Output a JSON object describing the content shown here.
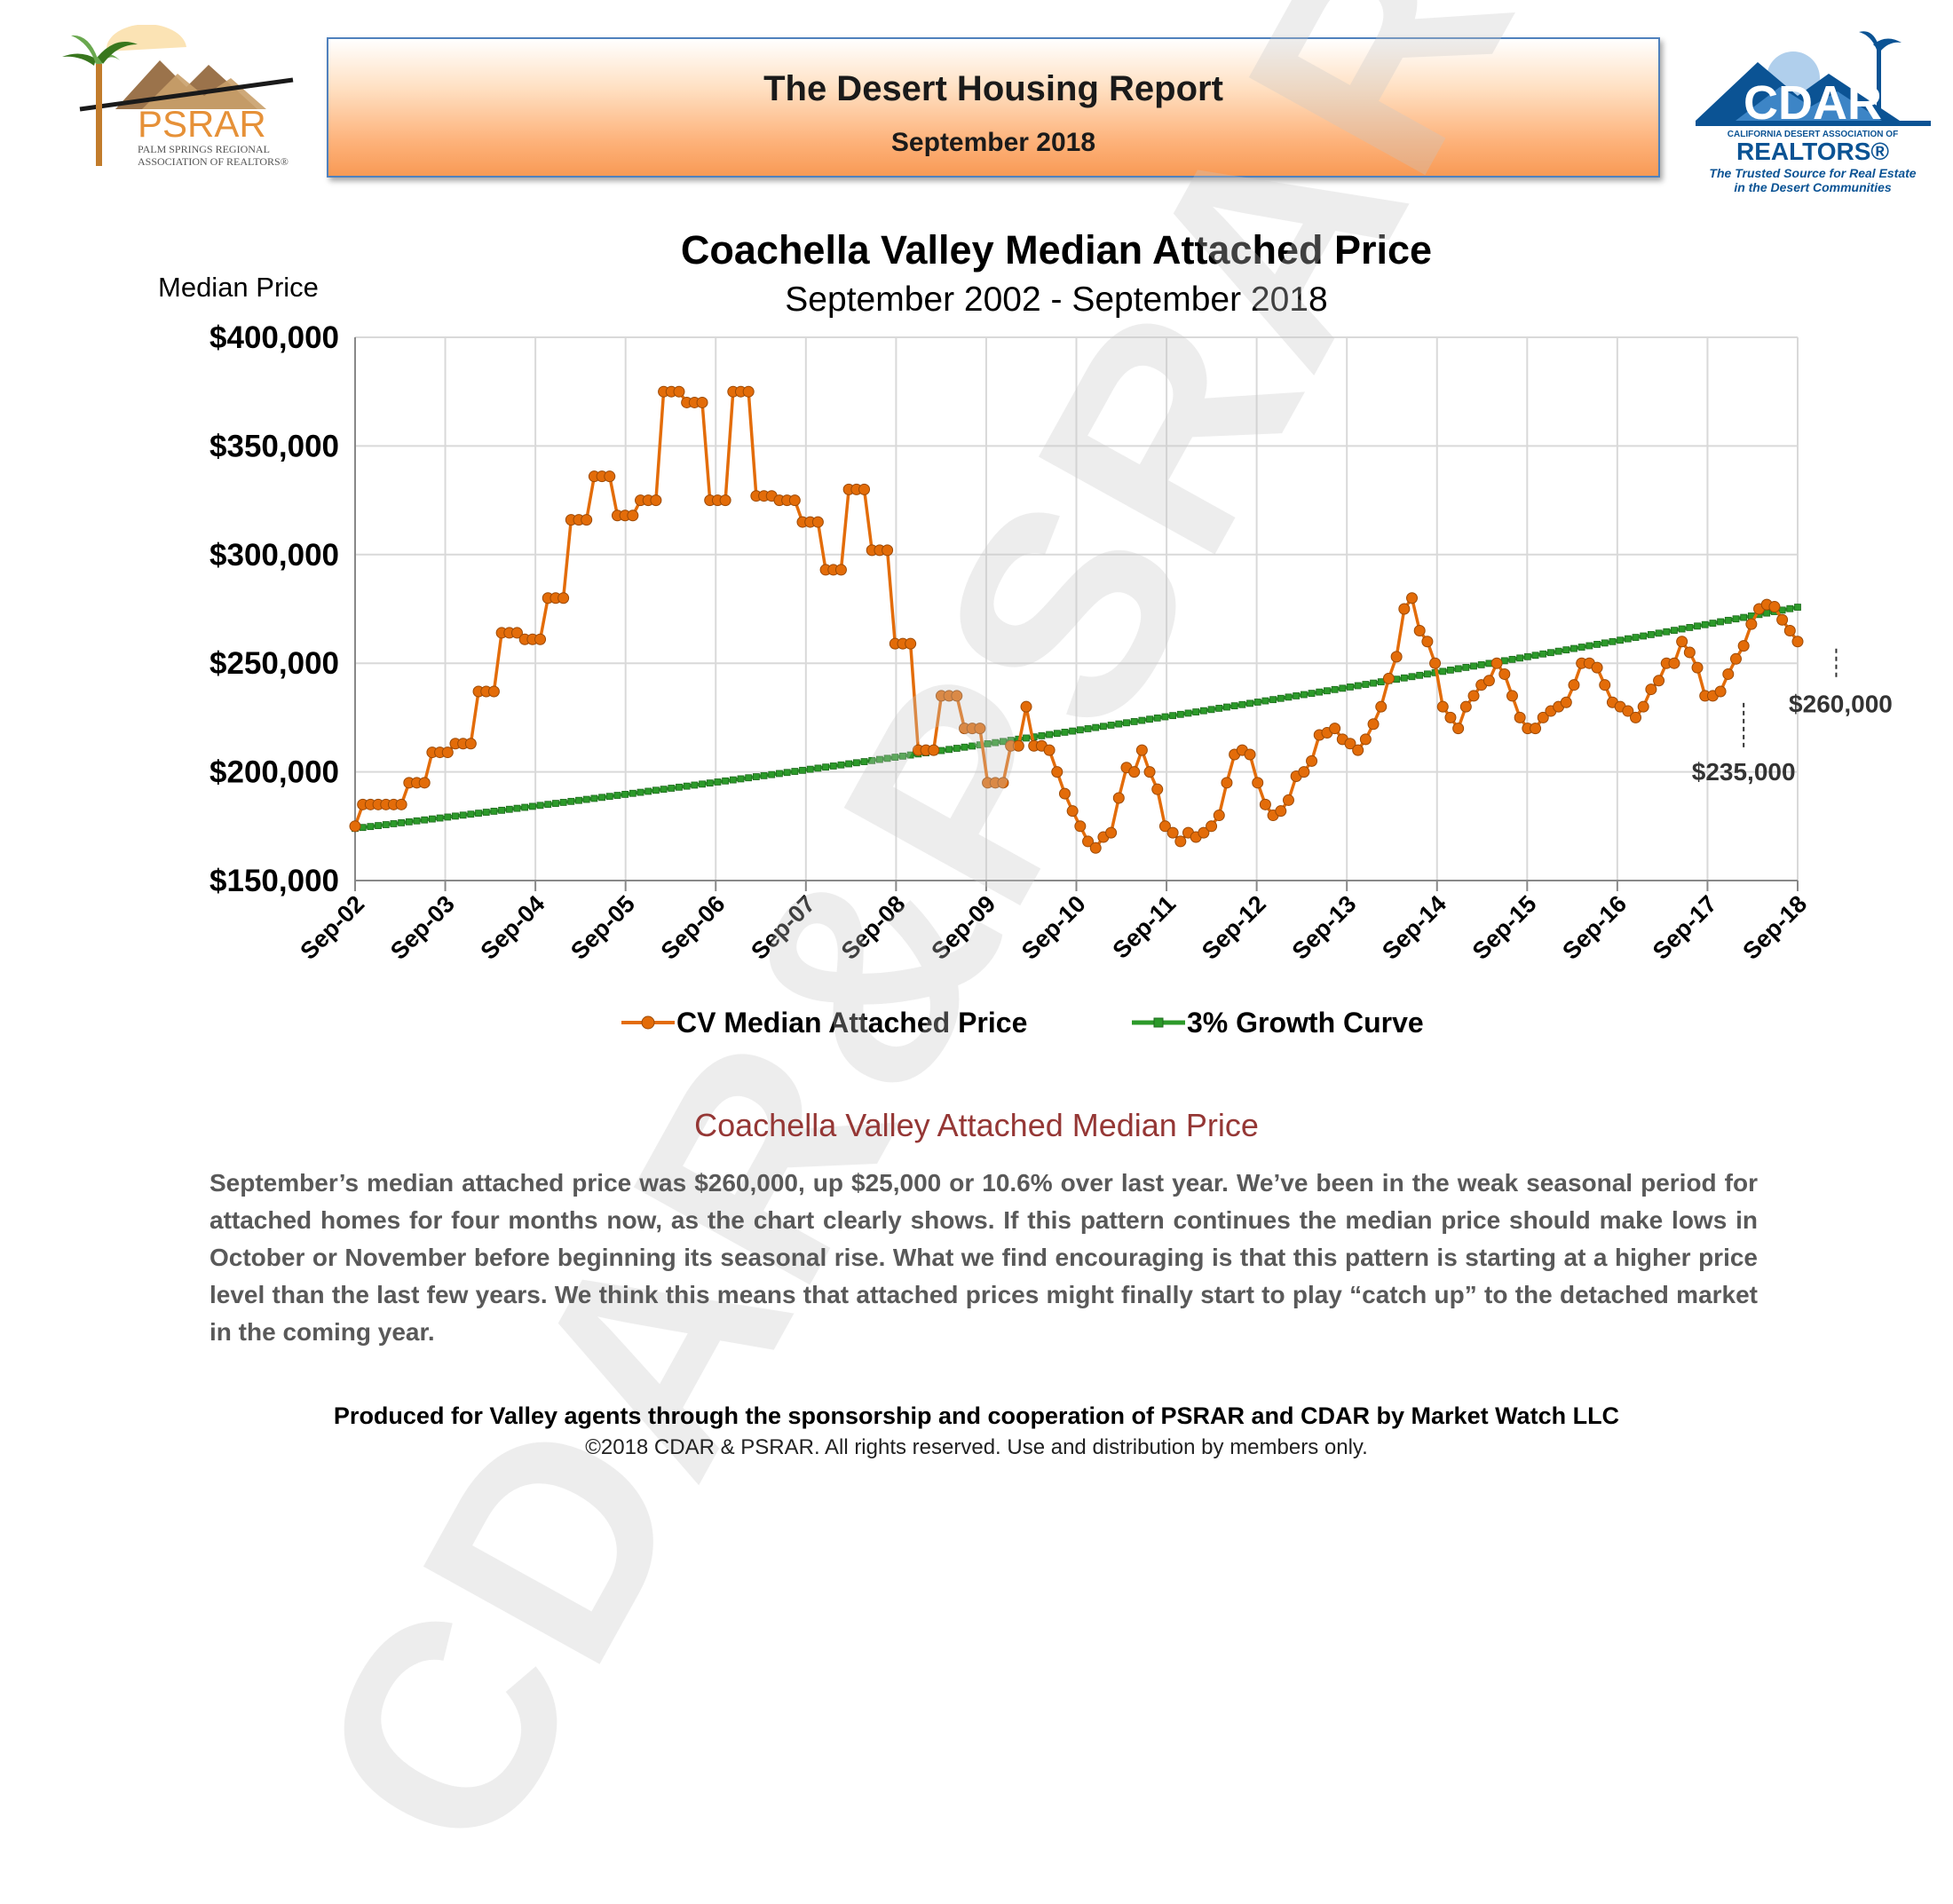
{
  "header": {
    "title": "The Desert Housing Report",
    "subtitle": "September 2018"
  },
  "logos": {
    "left": {
      "name": "PSRAR",
      "line1": "PALM SPRINGS REGIONAL",
      "line2": "ASSOCIATION OF REALTORS®"
    },
    "right": {
      "name": "CDAR",
      "line1": "CALIFORNIA DESERT ASSOCIATION OF",
      "line2": "REALTORS®",
      "tag1": "The Trusted Source for Real Estate",
      "tag2": "in the Desert Communities"
    }
  },
  "watermark": "CDAR&PSRAR",
  "chart_data": {
    "type": "line",
    "title": "Coachella Valley Median Attached Price",
    "subtitle": "September 2002 - September 2018",
    "ylabel": "Median Price",
    "xlabel": "",
    "ylim": [
      150000,
      400000
    ],
    "yticks": [
      150000,
      200000,
      250000,
      300000,
      350000,
      400000
    ],
    "ytick_labels": [
      "$150,000",
      "$200,000",
      "$250,000",
      "$300,000",
      "$350,000",
      "$400,000"
    ],
    "x_labels": [
      "Sep-02",
      "Sep-03",
      "Sep-04",
      "Sep-05",
      "Sep-06",
      "Sep-07",
      "Sep-08",
      "Sep-09",
      "Sep-10",
      "Sep-11",
      "Sep-12",
      "Sep-13",
      "Sep-14",
      "Sep-15",
      "Sep-16",
      "Sep-17",
      "Sep-18"
    ],
    "grid": true,
    "legend_position": "bottom",
    "series": [
      {
        "name": "CV Median Attached Price",
        "color": "#e36c09",
        "marker": "circle",
        "values": [
          175000,
          185000,
          185000,
          185000,
          185000,
          185000,
          185000,
          195000,
          195000,
          195000,
          209000,
          209000,
          209000,
          213000,
          213000,
          213000,
          237000,
          237000,
          237000,
          264000,
          264000,
          264000,
          261000,
          261000,
          261000,
          280000,
          280000,
          280000,
          316000,
          316000,
          316000,
          336000,
          336000,
          336000,
          318000,
          318000,
          318000,
          325000,
          325000,
          325000,
          375000,
          375000,
          375000,
          370000,
          370000,
          370000,
          325000,
          325000,
          325000,
          375000,
          375000,
          375000,
          327000,
          327000,
          327000,
          325000,
          325000,
          325000,
          315000,
          315000,
          315000,
          293000,
          293000,
          293000,
          330000,
          330000,
          330000,
          302000,
          302000,
          302000,
          259000,
          259000,
          259000,
          210000,
          210000,
          210000,
          235000,
          235000,
          235000,
          220000,
          220000,
          220000,
          195000,
          195000,
          195000,
          212000,
          212000,
          230000,
          212000,
          212000,
          210000,
          200000,
          190000,
          182000,
          175000,
          168000,
          165000,
          170000,
          172000,
          188000,
          202000,
          200000,
          210000,
          200000,
          192000,
          175000,
          172000,
          168000,
          172000,
          170000,
          172000,
          175000,
          180000,
          195000,
          208000,
          210000,
          208000,
          195000,
          185000,
          180000,
          182000,
          187000,
          198000,
          200000,
          205000,
          217000,
          218000,
          220000,
          215000,
          213000,
          210000,
          215000,
          222000,
          230000,
          243000,
          253000,
          275000,
          280000,
          265000,
          260000,
          250000,
          230000,
          225000,
          220000,
          230000,
          235000,
          240000,
          242000,
          250000,
          245000,
          235000,
          225000,
          220000,
          220000,
          225000,
          228000,
          230000,
          232000,
          240000,
          250000,
          250000,
          248000,
          240000,
          232000,
          230000,
          228000,
          225000,
          230000,
          238000,
          242000,
          250000,
          250000,
          260000,
          255000,
          248000,
          235000,
          235000,
          237000,
          245000,
          252000,
          258000,
          268000,
          275000,
          277000,
          276000,
          270000,
          265000,
          260000
        ]
      },
      {
        "name": "3% Growth Curve",
        "color": "#2c9a2a",
        "marker": "square",
        "start": 174000,
        "annual_growth": 0.03
      }
    ],
    "annotations": [
      {
        "label": "$235,000",
        "index": 180,
        "value": 235000
      },
      {
        "label": "$260,000",
        "index": 192,
        "value": 260000
      }
    ]
  },
  "section": {
    "title": "Coachella Valley Attached Median Price",
    "paragraph": "September’s median attached price was $260,000, up $25,000 or 10.6% over last year. We’ve been in the weak seasonal period for attached homes for four months now, as the chart clearly shows. If this pattern continues the median price should make lows in October or November before beginning its seasonal rise. What we find encouraging is that this pattern is starting at a higher price level than the last few years. We think this means that attached prices might finally start to play “catch up” to the detached market in the coming year."
  },
  "footer": {
    "line1": "Produced for Valley agents through the sponsorship and cooperation of PSRAR and CDAR by Market Watch LLC",
    "line2": "©2018 CDAR & PSRAR.  All rights reserved.  Use and distribution by members only."
  }
}
